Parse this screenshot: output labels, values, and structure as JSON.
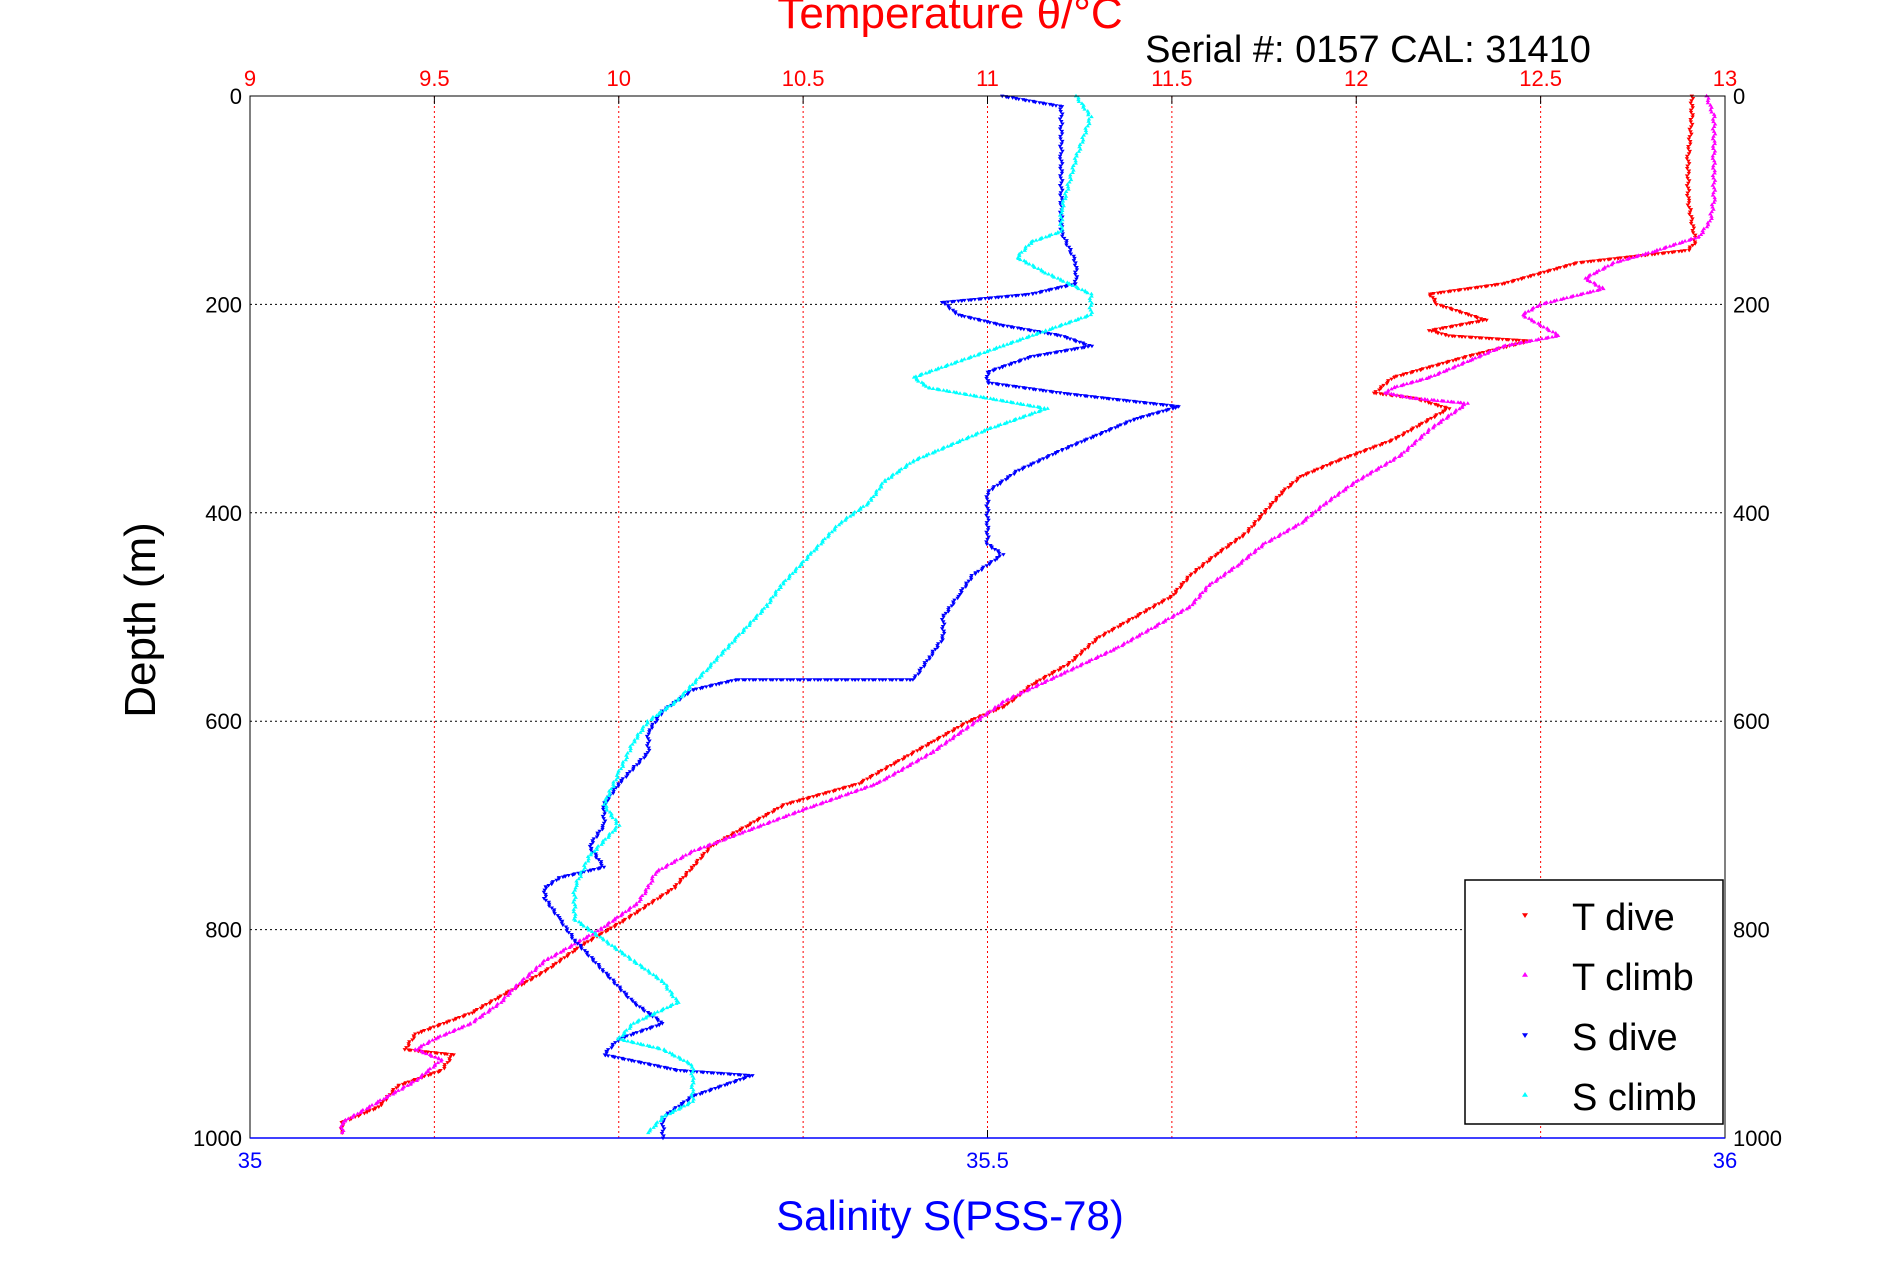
{
  "chart_data": {
    "type": "scatter",
    "title_top": "Temperature θ/°C",
    "serial_label": "Serial #: 0157  CAL: 31410",
    "ylabel": "Depth (m)",
    "xlabel_bottom": "Salinity S(PSS-78)",
    "top_axis": {
      "lim": [
        9,
        13
      ],
      "ticks": [
        "9",
        "9.5",
        "10",
        "10.5",
        "11",
        "11.5",
        "12",
        "12.5",
        "13"
      ],
      "color": "#ff0000"
    },
    "bottom_axis": {
      "lim": [
        35,
        36
      ],
      "ticks": [
        "35",
        "35.5",
        "36"
      ],
      "color": "#0000ff"
    },
    "y_axis": {
      "lim": [
        0,
        1000
      ],
      "reversed": true,
      "ticks": [
        "0",
        "200",
        "400",
        "600",
        "800",
        "1000"
      ]
    },
    "grid": true,
    "legend_position": "bottom-right",
    "legend": [
      "T dive",
      "T climb",
      "S dive",
      "S climb"
    ],
    "series": [
      {
        "name": "T dive",
        "axis": "top",
        "color": "#ff0000",
        "marker": "down-triangle",
        "points": [
          [
            12.91,
            0
          ],
          [
            12.91,
            20
          ],
          [
            12.9,
            60
          ],
          [
            12.9,
            100
          ],
          [
            12.91,
            120
          ],
          [
            12.92,
            140
          ],
          [
            12.9,
            148
          ],
          [
            12.6,
            160
          ],
          [
            12.4,
            180
          ],
          [
            12.2,
            190
          ],
          [
            12.22,
            200
          ],
          [
            12.35,
            215
          ],
          [
            12.2,
            225
          ],
          [
            12.25,
            230
          ],
          [
            12.47,
            235
          ],
          [
            12.3,
            250
          ],
          [
            12.1,
            270
          ],
          [
            12.05,
            285
          ],
          [
            12.16,
            290
          ],
          [
            12.25,
            300
          ],
          [
            12.1,
            330
          ],
          [
            11.95,
            350
          ],
          [
            11.85,
            365
          ],
          [
            11.8,
            380
          ],
          [
            11.75,
            400
          ],
          [
            11.7,
            420
          ],
          [
            11.62,
            440
          ],
          [
            11.55,
            460
          ],
          [
            11.5,
            480
          ],
          [
            11.4,
            500
          ],
          [
            11.3,
            520
          ],
          [
            11.22,
            545
          ],
          [
            11.12,
            565
          ],
          [
            11.05,
            585
          ],
          [
            10.95,
            600
          ],
          [
            10.85,
            620
          ],
          [
            10.75,
            640
          ],
          [
            10.65,
            660
          ],
          [
            10.45,
            680
          ],
          [
            10.35,
            700
          ],
          [
            10.25,
            720
          ],
          [
            10.2,
            740
          ],
          [
            10.15,
            760
          ],
          [
            10.02,
            790
          ],
          [
            9.9,
            815
          ],
          [
            9.8,
            840
          ],
          [
            9.7,
            860
          ],
          [
            9.6,
            880
          ],
          [
            9.45,
            900
          ],
          [
            9.42,
            915
          ],
          [
            9.55,
            920
          ],
          [
            9.52,
            935
          ],
          [
            9.4,
            950
          ],
          [
            9.35,
            970
          ],
          [
            9.25,
            985
          ],
          [
            9.25,
            995
          ]
        ]
      },
      {
        "name": "T climb",
        "axis": "top",
        "color": "#ff00ff",
        "marker": "up-triangle",
        "points": [
          [
            12.95,
            0
          ],
          [
            12.97,
            20
          ],
          [
            12.97,
            60
          ],
          [
            12.97,
            100
          ],
          [
            12.96,
            120
          ],
          [
            12.93,
            135
          ],
          [
            12.8,
            150
          ],
          [
            12.7,
            160
          ],
          [
            12.62,
            175
          ],
          [
            12.67,
            185
          ],
          [
            12.5,
            200
          ],
          [
            12.45,
            210
          ],
          [
            12.55,
            230
          ],
          [
            12.4,
            240
          ],
          [
            12.3,
            255
          ],
          [
            12.2,
            270
          ],
          [
            12.1,
            280
          ],
          [
            12.08,
            285
          ],
          [
            12.15,
            290
          ],
          [
            12.3,
            295
          ],
          [
            12.2,
            320
          ],
          [
            12.12,
            345
          ],
          [
            12.0,
            370
          ],
          [
            11.92,
            390
          ],
          [
            11.85,
            410
          ],
          [
            11.75,
            430
          ],
          [
            11.68,
            450
          ],
          [
            11.6,
            470
          ],
          [
            11.55,
            490
          ],
          [
            11.45,
            510
          ],
          [
            11.35,
            530
          ],
          [
            11.2,
            555
          ],
          [
            11.05,
            580
          ],
          [
            10.95,
            605
          ],
          [
            10.85,
            630
          ],
          [
            10.7,
            660
          ],
          [
            10.5,
            685
          ],
          [
            10.35,
            705
          ],
          [
            10.2,
            725
          ],
          [
            10.1,
            745
          ],
          [
            10.08,
            760
          ],
          [
            10.05,
            775
          ],
          [
            9.95,
            800
          ],
          [
            9.8,
            830
          ],
          [
            9.72,
            855
          ],
          [
            9.68,
            870
          ],
          [
            9.6,
            890
          ],
          [
            9.5,
            905
          ],
          [
            9.45,
            915
          ],
          [
            9.52,
            925
          ],
          [
            9.45,
            945
          ],
          [
            9.35,
            965
          ],
          [
            9.25,
            985
          ],
          [
            9.25,
            995
          ]
        ]
      },
      {
        "name": "S dive",
        "axis": "bottom",
        "color": "#0000ff",
        "marker": "down-triangle",
        "points": [
          [
            35.51,
            0
          ],
          [
            35.55,
            10
          ],
          [
            35.55,
            60
          ],
          [
            35.55,
            130
          ],
          [
            35.56,
            160
          ],
          [
            35.56,
            180
          ],
          [
            35.53,
            190
          ],
          [
            35.47,
            198
          ],
          [
            35.48,
            210
          ],
          [
            35.51,
            220
          ],
          [
            35.55,
            230
          ],
          [
            35.57,
            240
          ],
          [
            35.53,
            250
          ],
          [
            35.5,
            265
          ],
          [
            35.5,
            275
          ],
          [
            35.55,
            285
          ],
          [
            35.58,
            290
          ],
          [
            35.63,
            298
          ],
          [
            35.6,
            310
          ],
          [
            35.55,
            340
          ],
          [
            35.52,
            360
          ],
          [
            35.5,
            380
          ],
          [
            35.5,
            400
          ],
          [
            35.5,
            430
          ],
          [
            35.51,
            440
          ],
          [
            35.49,
            460
          ],
          [
            35.48,
            480
          ],
          [
            35.47,
            500
          ],
          [
            35.47,
            520
          ],
          [
            35.46,
            540
          ],
          [
            35.45,
            560
          ],
          [
            35.33,
            560
          ],
          [
            35.3,
            570
          ],
          [
            35.28,
            590
          ],
          [
            35.27,
            610
          ],
          [
            35.27,
            630
          ],
          [
            35.25,
            660
          ],
          [
            35.24,
            680
          ],
          [
            35.24,
            700
          ],
          [
            35.23,
            720
          ],
          [
            35.24,
            740
          ],
          [
            35.21,
            750
          ],
          [
            35.2,
            760
          ],
          [
            35.2,
            770
          ],
          [
            35.21,
            790
          ],
          [
            35.22,
            810
          ],
          [
            35.24,
            840
          ],
          [
            35.26,
            870
          ],
          [
            35.28,
            890
          ],
          [
            35.25,
            905
          ],
          [
            35.24,
            920
          ],
          [
            35.29,
            935
          ],
          [
            35.34,
            940
          ],
          [
            35.3,
            960
          ],
          [
            35.28,
            980
          ],
          [
            35.28,
            1000
          ]
        ]
      },
      {
        "name": "S climb",
        "axis": "bottom",
        "color": "#00ffff",
        "marker": "up-triangle",
        "points": [
          [
            35.56,
            0
          ],
          [
            35.57,
            20
          ],
          [
            35.56,
            60
          ],
          [
            35.55,
            110
          ],
          [
            35.55,
            130
          ],
          [
            35.53,
            140
          ],
          [
            35.52,
            155
          ],
          [
            35.54,
            170
          ],
          [
            35.57,
            190
          ],
          [
            35.57,
            210
          ],
          [
            35.54,
            225
          ],
          [
            35.51,
            240
          ],
          [
            35.48,
            255
          ],
          [
            35.45,
            270
          ],
          [
            35.46,
            280
          ],
          [
            35.5,
            290
          ],
          [
            35.54,
            300
          ],
          [
            35.5,
            320
          ],
          [
            35.45,
            350
          ],
          [
            35.43,
            370
          ],
          [
            35.42,
            390
          ],
          [
            35.4,
            410
          ],
          [
            35.38,
            440
          ],
          [
            35.36,
            470
          ],
          [
            35.35,
            490
          ],
          [
            35.33,
            520
          ],
          [
            35.31,
            550
          ],
          [
            35.29,
            580
          ],
          [
            35.27,
            600
          ],
          [
            35.26,
            620
          ],
          [
            35.25,
            650
          ],
          [
            35.24,
            680
          ],
          [
            35.25,
            700
          ],
          [
            35.23,
            730
          ],
          [
            35.22,
            760
          ],
          [
            35.22,
            790
          ],
          [
            35.24,
            810
          ],
          [
            35.26,
            830
          ],
          [
            35.28,
            850
          ],
          [
            35.29,
            870
          ],
          [
            35.26,
            890
          ],
          [
            35.25,
            905
          ],
          [
            35.28,
            915
          ],
          [
            35.3,
            930
          ],
          [
            35.3,
            945
          ],
          [
            35.3,
            965
          ],
          [
            35.28,
            980
          ],
          [
            35.27,
            995
          ]
        ]
      }
    ]
  }
}
